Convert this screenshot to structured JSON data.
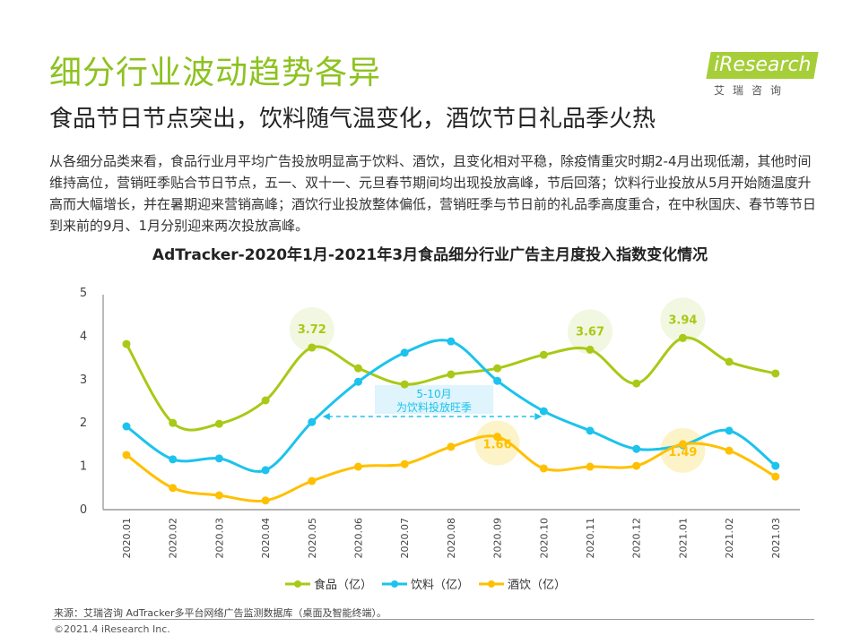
{
  "header": {
    "title": "细分行业波动趋势各异",
    "subtitle": "食品节日节点突出，饮料随气温变化，酒饮节日礼品季火热",
    "body": "从各细分品类来看，食品行业月平均广告投放明显高于饮料、酒饮，且变化相对平稳，除疫情重灾时期2-4月出现低潮，其他时间维持高位，营销旺季贴合节日节点，五一、双十一、元旦春节期间均出现投放高峰，节后回落；饮料行业投放从5月开始随温度升高而大幅增长，并在暑期迎来营销高峰；酒饮行业投放整体偏低，营销旺季与节日前的礼品季高度重合，在中秋国庆、春节等节日到来前的9月、1月分别迎来两次投放高峰。",
    "logo_text": "iResearch",
    "logo_cn": "艾瑞咨询"
  },
  "chart_data": {
    "type": "line",
    "title": "AdTracker-2020年1月-2021年3月食品细分行业广告主月度投入指数变化情况",
    "categories": [
      "2020.01",
      "2020.02",
      "2020.03",
      "2020.04",
      "2020.05",
      "2020.06",
      "2020.07",
      "2020.08",
      "2020.09",
      "2020.10",
      "2020.11",
      "2020.12",
      "2021.01",
      "2021.02",
      "2021.03"
    ],
    "ylim": [
      0,
      5
    ],
    "yticks": [
      "0",
      "1",
      "2",
      "3",
      "4",
      "5"
    ],
    "grid": false,
    "legend": "bottom",
    "series": [
      {
        "name": "食品（亿）",
        "color": "#a8c916",
        "values": [
          3.8,
          1.98,
          1.96,
          2.5,
          3.72,
          3.24,
          2.87,
          3.1,
          3.24,
          3.55,
          3.67,
          2.89,
          3.94,
          3.39,
          3.12
        ]
      },
      {
        "name": "饮料（亿）",
        "color": "#1cc3ed",
        "values": [
          1.9,
          1.14,
          1.16,
          0.89,
          2.0,
          2.93,
          3.6,
          3.86,
          2.95,
          2.25,
          1.8,
          1.38,
          1.47,
          1.8,
          0.99
        ]
      },
      {
        "name": "酒饮（亿）",
        "color": "#ffc000",
        "values": [
          1.24,
          0.48,
          0.31,
          0.19,
          0.64,
          0.97,
          1.03,
          1.43,
          1.66,
          0.93,
          0.97,
          0.99,
          1.49,
          1.34,
          0.74
        ]
      }
    ],
    "annotations": [
      {
        "series": 0,
        "index": 4,
        "label": "3.72"
      },
      {
        "series": 0,
        "index": 10,
        "label": "3.67"
      },
      {
        "series": 0,
        "index": 12,
        "label": "3.94"
      },
      {
        "series": 2,
        "index": 8,
        "label": "1.66"
      },
      {
        "series": 2,
        "index": 12,
        "label": "1.49"
      }
    ],
    "range_note": {
      "line1": "5-10月",
      "line2": "为饮料投放旺季",
      "from": 4,
      "to": 9
    }
  },
  "footer": {
    "source": "来源：艾瑞咨询 AdTracker多平台网络广告监测数据库（桌面及智能终端）。",
    "copyright": "©2021.4 iResearch Inc."
  }
}
